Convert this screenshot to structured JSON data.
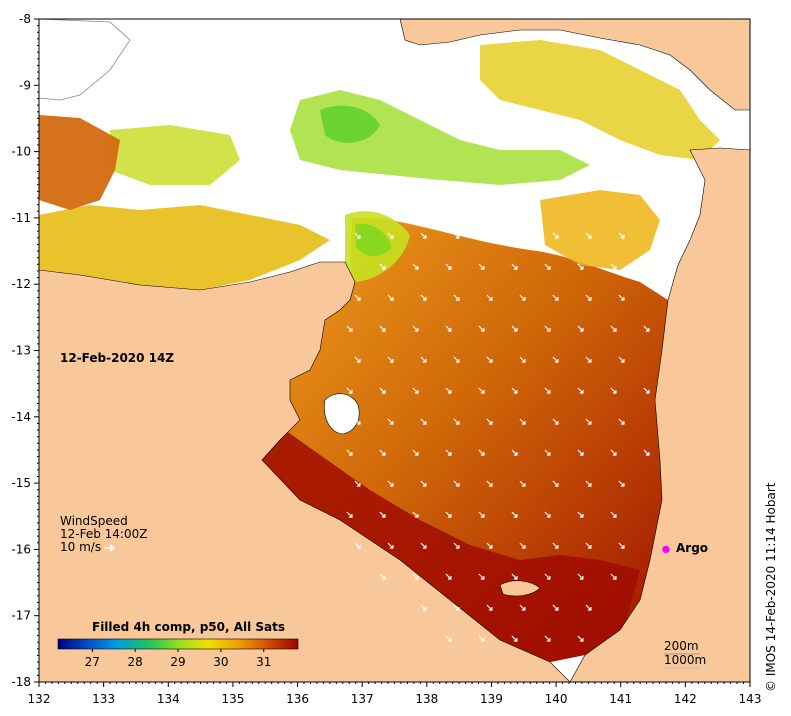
{
  "map": {
    "date_label": "12-Feb-2020 14Z",
    "lon_ticks": [
      "132",
      "133",
      "134",
      "135",
      "136",
      "137",
      "138",
      "139",
      "140",
      "141",
      "142",
      "143"
    ],
    "lat_ticks": [
      "-8",
      "-9",
      "-10",
      "-11",
      "-12",
      "-13",
      "-14",
      "-15",
      "-16",
      "-17",
      "-18"
    ],
    "lon_range": [
      132,
      143
    ],
    "lat_range": [
      -18,
      -8
    ],
    "colors": {
      "land": "#f8c89a",
      "no_data": "#ffffff",
      "coast": "#000000",
      "river": "#9a9a9a",
      "wind_arrow": "#ffffff",
      "argo_marker": "#ff00ff"
    }
  },
  "wind": {
    "title": "WindSpeed",
    "time": "12-Feb 14:00Z",
    "scale_label": "10 m/s"
  },
  "argo": {
    "label": "Argo",
    "lon": 141.7,
    "lat": -16.0
  },
  "colorbar": {
    "title": "Filled 4h comp, p50, All Sats",
    "ticks": [
      "27",
      "28",
      "29",
      "30",
      "31"
    ],
    "tick_values": [
      27,
      28,
      29,
      30,
      31
    ],
    "range": [
      26.2,
      31.8
    ],
    "stops": [
      "#000080",
      "#0050c8",
      "#00a0e0",
      "#20c060",
      "#90e020",
      "#f0e000",
      "#f0a000",
      "#d05000",
      "#a00000"
    ]
  },
  "depth_legend": {
    "line1": "200m",
    "line2": "1000m"
  },
  "credit": "© IMOS 14-Feb-2020 11:14 Hobart"
}
